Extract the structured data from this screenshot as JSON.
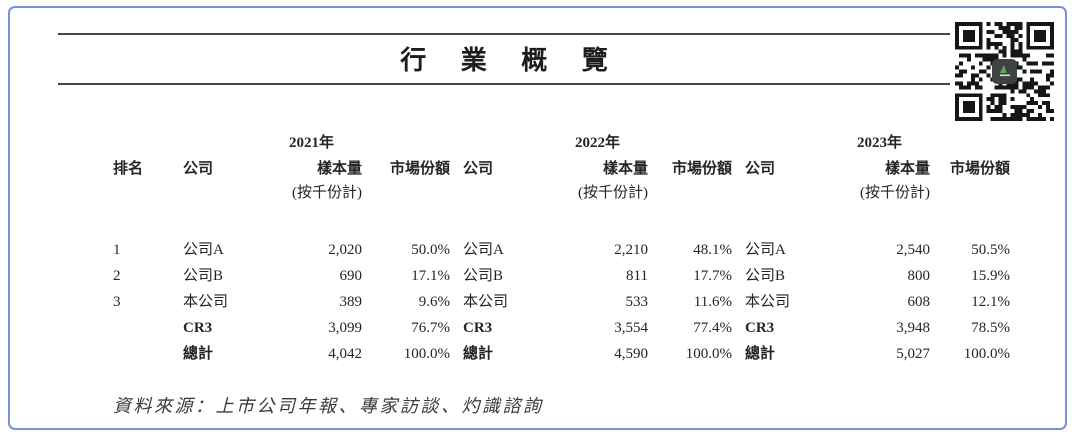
{
  "page": {
    "title": "行 業 概 覽",
    "source_note": "資料來源：上市公司年報、專家訪談、灼識諮詢",
    "accent_border_color": "#7492d4",
    "rule_color": "#474747",
    "text_color": "#282422"
  },
  "icons": {
    "qr": "qr-code"
  },
  "table": {
    "headers": {
      "rank": "排名",
      "company": "公司",
      "sample": "樣本量",
      "sample_sub": "(按千份計)",
      "share": "市場份額"
    },
    "sections": [
      {
        "year": "2021年"
      },
      {
        "year": "2022年"
      },
      {
        "year": "2023年"
      }
    ],
    "rows": [
      {
        "rank": "1",
        "company": "公司A",
        "bold": false,
        "data": [
          [
            "2,020",
            "50.0%"
          ],
          [
            "2,210",
            "48.1%"
          ],
          [
            "2,540",
            "50.5%"
          ]
        ]
      },
      {
        "rank": "2",
        "company": "公司B",
        "bold": false,
        "data": [
          [
            "690",
            "17.1%"
          ],
          [
            "811",
            "17.7%"
          ],
          [
            "800",
            "15.9%"
          ]
        ]
      },
      {
        "rank": "3",
        "company": "本公司",
        "bold": false,
        "data": [
          [
            "389",
            "9.6%"
          ],
          [
            "533",
            "11.6%"
          ],
          [
            "608",
            "12.1%"
          ]
        ]
      },
      {
        "rank": "",
        "company": "CR3",
        "bold": true,
        "data": [
          [
            "3,099",
            "76.7%"
          ],
          [
            "3,554",
            "77.4%"
          ],
          [
            "3,948",
            "78.5%"
          ]
        ]
      },
      {
        "rank": "",
        "company": "總計",
        "bold": true,
        "data": [
          [
            "4,042",
            "100.0%"
          ],
          [
            "4,590",
            "100.0%"
          ],
          [
            "5,027",
            "100.0%"
          ]
        ]
      }
    ]
  }
}
